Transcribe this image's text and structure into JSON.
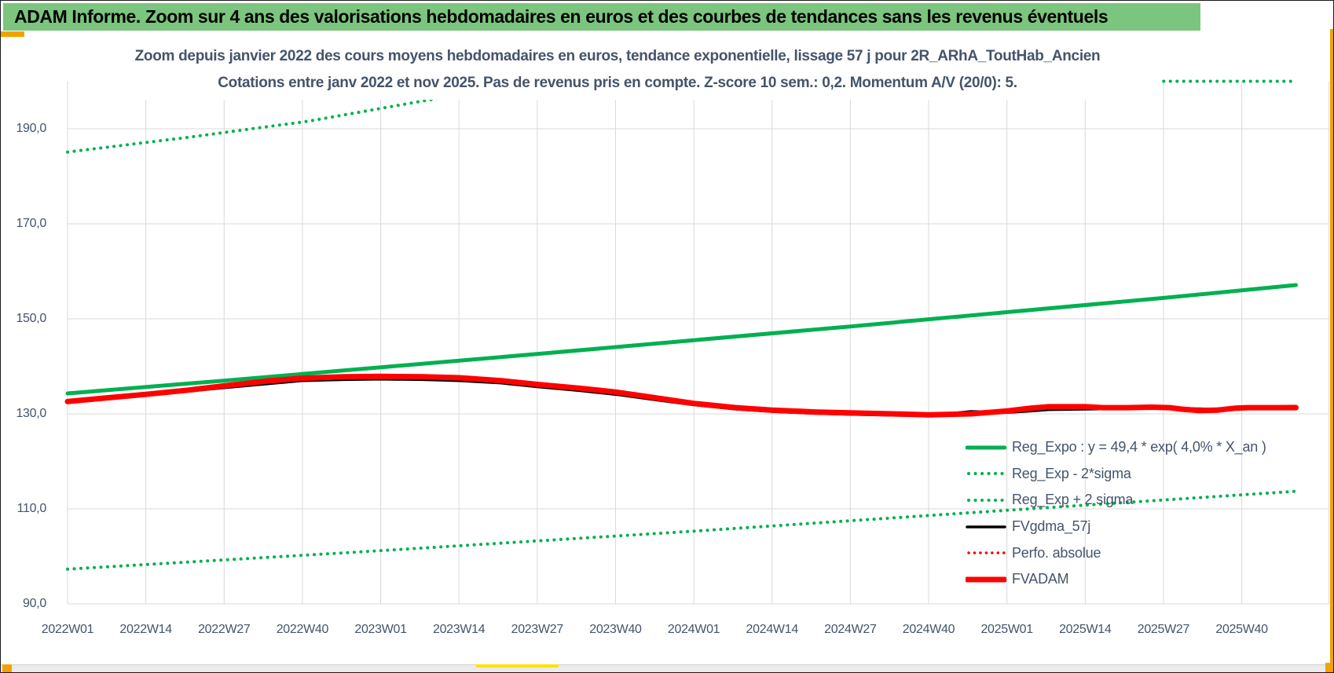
{
  "window": {
    "header_title": "ADAM Informe. Zoom sur 4 ans des valorisations hebdomadaires en euros et des courbes de tendances sans les revenus éventuels"
  },
  "colors": {
    "header_green": "#7CC57E",
    "series_green": "#00B050",
    "series_red": "#FF0000",
    "series_black": "#000000",
    "title_navy": "#44546A",
    "gridline_grey": "#D9D9D9",
    "handle_orange": "#F2A200",
    "handle_yellow": "#FFE100",
    "bottom_strip_grey": "#EBEBEB"
  },
  "chart_data": {
    "type": "line",
    "title": "Zoom depuis janvier 2022 des cours moyens hebdomadaires en euros, tendance exponentielle, lissage 57 j pour 2R_ARhA_ToutHab_Ancien",
    "subtitle": "Cotations entre janv 2022 et nov 2025. Pas de revenus pris en compte. Z-score 10 sem.: 0,2. Momentum A/V (20/0): 5.",
    "grid": true,
    "legend_position": "inside-right",
    "ylim": [
      90,
      200
    ],
    "x_weeks_range": [
      0,
      209.5
    ],
    "weeks_per_tick": 13,
    "x_tick_labels": [
      "2022W01",
      "2022W14",
      "2022W27",
      "2022W40",
      "2023W01",
      "2023W14",
      "2023W27",
      "2023W40",
      "2024W01",
      "2024W14",
      "2024W27",
      "2024W40",
      "2025W01",
      "2025W14",
      "2025W27",
      "2025W40"
    ],
    "y_tick_labels": [
      "190,0",
      "170,0",
      "150,0",
      "130,0",
      "110,0",
      "90,0"
    ],
    "y_tick_values": [
      190,
      170,
      150,
      130,
      110,
      90
    ],
    "series": [
      {
        "name": "Reg_Expo : y = 49,4 * exp( 4,0% * X_an )",
        "color": "#00B050",
        "dash": "solid",
        "width": 5,
        "points": [
          [
            0,
            134.3
          ],
          [
            26,
            137.0
          ],
          [
            52,
            139.8
          ],
          [
            78,
            142.6
          ],
          [
            104,
            145.5
          ],
          [
            130,
            148.4
          ],
          [
            156,
            151.4
          ],
          [
            182,
            154.4
          ],
          [
            204,
            157.1
          ]
        ]
      },
      {
        "name": "Reg_Exp - 2*sigma",
        "color": "#00B050",
        "dash": "dot",
        "width": 4,
        "points": [
          [
            0,
            97.3
          ],
          [
            52,
            101.2
          ],
          [
            104,
            105.3
          ],
          [
            156,
            109.7
          ],
          [
            204,
            113.7
          ]
        ]
      },
      {
        "name": "Reg_Exp + 2 sigma",
        "color": "#00B050",
        "dash": "dot",
        "width": 4,
        "points": [
          [
            0,
            185.1
          ],
          [
            20,
            188.2
          ],
          [
            40,
            191.6
          ],
          [
            61,
            196.3
          ],
          [
            75,
            200
          ],
          [
            204,
            200
          ]
        ]
      },
      {
        "name": "FVgdma_57j",
        "color": "#000000",
        "dash": "solid",
        "width": 3.5,
        "points": [
          [
            0,
            132.7
          ],
          [
            13,
            133.9
          ],
          [
            26,
            135.5
          ],
          [
            39,
            137.0
          ],
          [
            46,
            137.2
          ],
          [
            52,
            137.3
          ],
          [
            59,
            137.2
          ],
          [
            65,
            137.0
          ],
          [
            72,
            136.5
          ],
          [
            78,
            135.7
          ],
          [
            85,
            134.9
          ],
          [
            91,
            134.1
          ],
          [
            98,
            132.9
          ],
          [
            104,
            131.9
          ],
          [
            111,
            131.0
          ],
          [
            117,
            130.5
          ],
          [
            124,
            130.1
          ],
          [
            130,
            129.9
          ],
          [
            137,
            129.7
          ],
          [
            143,
            129.6
          ],
          [
            150,
            130.5
          ],
          [
            156,
            130.3
          ],
          [
            160,
            130.6
          ],
          [
            163,
            130.9
          ],
          [
            169,
            131.0
          ],
          [
            176,
            131.1
          ],
          [
            183,
            131.2
          ],
          [
            190,
            131.0
          ],
          [
            196,
            131.4
          ],
          [
            204,
            131.6
          ]
        ]
      },
      {
        "name": "Perfo. absolue",
        "color": "#FF0000",
        "dash": "dot",
        "width": 3.5,
        "points": [
          [
            0,
            132.6
          ],
          [
            6,
            133.3
          ],
          [
            13,
            134.1
          ],
          [
            20,
            135.0
          ],
          [
            26,
            135.9
          ],
          [
            33,
            136.9
          ],
          [
            39,
            137.5
          ],
          [
            46,
            137.8
          ],
          [
            52,
            137.9
          ],
          [
            59,
            137.8
          ],
          [
            65,
            137.6
          ],
          [
            72,
            137.0
          ],
          [
            78,
            136.2
          ],
          [
            85,
            135.4
          ],
          [
            91,
            134.6
          ],
          [
            98,
            133.3
          ],
          [
            104,
            132.2
          ],
          [
            111,
            131.3
          ],
          [
            117,
            130.8
          ],
          [
            124,
            130.4
          ],
          [
            130,
            130.2
          ],
          [
            137,
            130.0
          ],
          [
            143,
            129.8
          ],
          [
            150,
            130.0
          ],
          [
            156,
            130.6
          ],
          [
            160,
            131.2
          ],
          [
            163,
            131.5
          ],
          [
            169,
            131.5
          ],
          [
            172,
            131.3
          ],
          [
            176,
            131.3
          ],
          [
            180,
            131.4
          ],
          [
            183,
            131.3
          ],
          [
            185,
            131.0
          ],
          [
            188,
            130.7
          ],
          [
            191,
            130.8
          ],
          [
            194,
            131.2
          ],
          [
            196,
            131.3
          ],
          [
            204,
            131.3
          ]
        ]
      },
      {
        "name": "FVADAM",
        "color": "#FF0000",
        "dash": "solid",
        "width": 7,
        "points": [
          [
            0,
            132.6
          ],
          [
            6,
            133.3
          ],
          [
            13,
            134.1
          ],
          [
            20,
            135.0
          ],
          [
            26,
            135.9
          ],
          [
            33,
            136.9
          ],
          [
            39,
            137.5
          ],
          [
            46,
            137.8
          ],
          [
            52,
            137.9
          ],
          [
            59,
            137.8
          ],
          [
            65,
            137.6
          ],
          [
            72,
            137.0
          ],
          [
            78,
            136.2
          ],
          [
            85,
            135.4
          ],
          [
            91,
            134.6
          ],
          [
            98,
            133.3
          ],
          [
            104,
            132.2
          ],
          [
            111,
            131.3
          ],
          [
            117,
            130.8
          ],
          [
            124,
            130.4
          ],
          [
            130,
            130.2
          ],
          [
            137,
            130.0
          ],
          [
            143,
            129.8
          ],
          [
            150,
            130.0
          ],
          [
            156,
            130.6
          ],
          [
            160,
            131.2
          ],
          [
            163,
            131.5
          ],
          [
            169,
            131.5
          ],
          [
            172,
            131.3
          ],
          [
            176,
            131.3
          ],
          [
            180,
            131.4
          ],
          [
            183,
            131.3
          ],
          [
            185,
            131.0
          ],
          [
            188,
            130.7
          ],
          [
            191,
            130.8
          ],
          [
            194,
            131.2
          ],
          [
            196,
            131.3
          ],
          [
            204,
            131.3
          ]
        ]
      }
    ]
  }
}
